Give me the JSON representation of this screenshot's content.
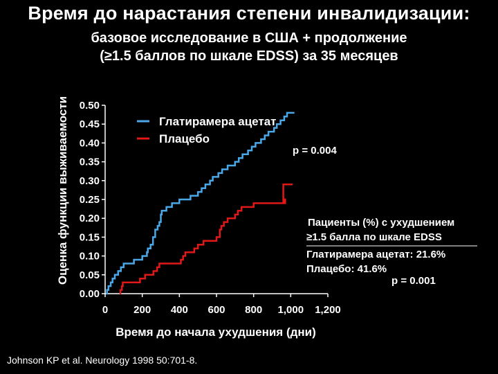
{
  "page": {
    "title": "Время до нарастания степени инвалидизации:",
    "subtitle_line1": "базовое исследование в США + продолжение",
    "subtitle_line2": "(≥1.5 баллов по шкале EDSS) за 35 месяцев",
    "citation": "Johnson KP et al. Neurology 1998 50:701-8."
  },
  "colors": {
    "background": "#000000",
    "glatiramer": "#4aa8e8",
    "placebo": "#e01818",
    "text": "#ffffff"
  },
  "chart_data": {
    "type": "line",
    "step": true,
    "xlabel": "Время до начала ухудшения (дни)",
    "ylabel": "Оценка функции выживаемости",
    "xlim": [
      0,
      1200
    ],
    "ylim": [
      0,
      0.5
    ],
    "x_ticks": [
      0,
      200,
      400,
      600,
      800,
      1000,
      1200
    ],
    "x_tick_labels": [
      "0",
      "200",
      "400",
      "600",
      "800",
      "1,000",
      "1,200"
    ],
    "y_ticks": [
      0,
      0.05,
      0.1,
      0.15,
      0.2,
      0.25,
      0.3,
      0.35,
      0.4,
      0.45,
      0.5
    ],
    "y_tick_labels": [
      "0.00",
      "0.05",
      "0.10",
      "0.15",
      "0.20",
      "0.25",
      "0.30",
      "0.35",
      "0.40",
      "0.45",
      "0.50"
    ],
    "grid": false,
    "legend_position": "top-center",
    "series": [
      {
        "name": "Плацебо",
        "color": "#e01818",
        "points": [
          [
            80,
            0
          ],
          [
            82,
            0.01
          ],
          [
            90,
            0.02
          ],
          [
            95,
            0.03
          ],
          [
            180,
            0.03
          ],
          [
            188,
            0.04
          ],
          [
            215,
            0.05
          ],
          [
            260,
            0.06
          ],
          [
            280,
            0.07
          ],
          [
            292,
            0.08
          ],
          [
            400,
            0.08
          ],
          [
            408,
            0.09
          ],
          [
            420,
            0.1
          ],
          [
            432,
            0.11
          ],
          [
            480,
            0.12
          ],
          [
            500,
            0.13
          ],
          [
            530,
            0.14
          ],
          [
            600,
            0.15
          ],
          [
            618,
            0.17
          ],
          [
            626,
            0.18
          ],
          [
            640,
            0.19
          ],
          [
            660,
            0.2
          ],
          [
            700,
            0.21
          ],
          [
            715,
            0.22
          ],
          [
            735,
            0.23
          ],
          [
            800,
            0.24
          ],
          [
            880,
            0.24
          ],
          [
            930,
            0.24
          ],
          [
            945,
            0.24
          ],
          [
            950,
            0.24
          ],
          [
            952,
            0.24
          ],
          [
            960,
            0.24
          ],
          [
            962,
            0.24
          ],
          [
            965,
            0.25
          ],
          [
            970,
            0.24
          ],
          [
            960,
            0.24
          ],
          [
            960,
            0.24
          ],
          [
            960,
            0.24
          ],
          [
            960,
            0.24
          ],
          [
            960,
            0.24
          ],
          [
            960,
            0.24
          ],
          [
            960,
            0.24
          ],
          [
            960,
            0.24
          ],
          [
            960,
            0.24
          ],
          [
            960,
            0.24
          ],
          [
            960,
            0.24
          ],
          [
            960,
            0.29
          ],
          [
            1010,
            0.29
          ]
        ]
      },
      {
        "name": "Глатирамера ацетат",
        "color": "#4aa8e8",
        "points": [
          [
            5,
            0
          ],
          [
            10,
            0.01
          ],
          [
            18,
            0.02
          ],
          [
            30,
            0.03
          ],
          [
            40,
            0.04
          ],
          [
            52,
            0.05
          ],
          [
            70,
            0.06
          ],
          [
            85,
            0.07
          ],
          [
            100,
            0.08
          ],
          [
            140,
            0.08
          ],
          [
            155,
            0.09
          ],
          [
            185,
            0.09
          ],
          [
            200,
            0.1
          ],
          [
            225,
            0.11
          ],
          [
            230,
            0.12
          ],
          [
            245,
            0.13
          ],
          [
            258,
            0.15
          ],
          [
            270,
            0.17
          ],
          [
            283,
            0.18
          ],
          [
            292,
            0.19
          ],
          [
            300,
            0.21
          ],
          [
            305,
            0.22
          ],
          [
            330,
            0.23
          ],
          [
            360,
            0.24
          ],
          [
            400,
            0.25
          ],
          [
            460,
            0.26
          ],
          [
            500,
            0.27
          ],
          [
            520,
            0.28
          ],
          [
            540,
            0.29
          ],
          [
            565,
            0.3
          ],
          [
            580,
            0.31
          ],
          [
            610,
            0.32
          ],
          [
            630,
            0.33
          ],
          [
            660,
            0.34
          ],
          [
            700,
            0.35
          ],
          [
            720,
            0.36
          ],
          [
            740,
            0.37
          ],
          [
            770,
            0.38
          ],
          [
            790,
            0.39
          ],
          [
            810,
            0.4
          ],
          [
            840,
            0.41
          ],
          [
            860,
            0.42
          ],
          [
            880,
            0.43
          ],
          [
            910,
            0.44
          ],
          [
            925,
            0.45
          ],
          [
            945,
            0.46
          ],
          [
            965,
            0.47
          ],
          [
            980,
            0.48
          ],
          [
            1020,
            0.48
          ]
        ]
      }
    ],
    "annotations": {
      "p_value_main": "p = 0.004",
      "box_line1": "Пациенты (%) с ухудшением",
      "box_line2": "≥1.5 балла по шкале EDSS",
      "box_line3": "Глатирамера ацетат: 21.6%",
      "box_line4": "Плацебо: 41.6%",
      "p_value_box": "p = 0.001"
    }
  }
}
